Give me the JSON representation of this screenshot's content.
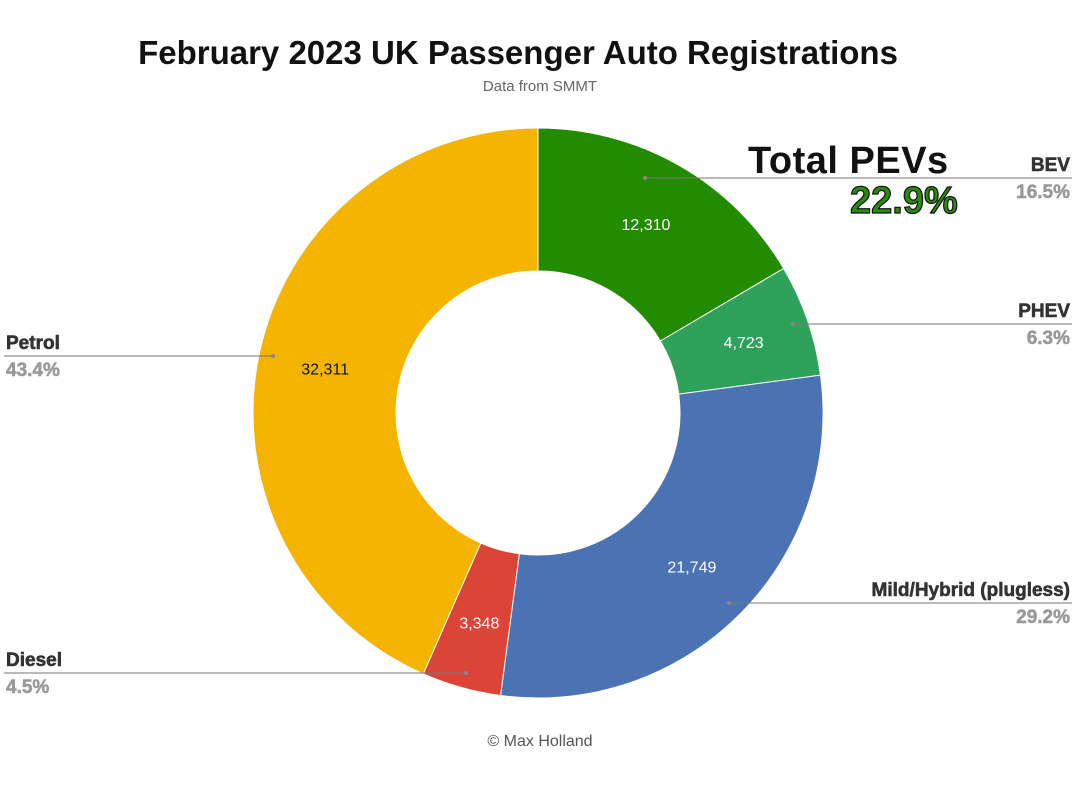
{
  "title": "February 2023 UK Passenger Auto Registrations",
  "subtitle": "Data from SMMT",
  "footer": "© Max Holland",
  "annotation": {
    "title": "Total PEVs",
    "value": "22.9%",
    "value_color": "#2a8a0a"
  },
  "chart_data": {
    "type": "pie",
    "variant": "donut",
    "title": "February 2023 UK Passenger Auto Registrations",
    "subtitle": "Data from SMMT",
    "slices": [
      {
        "name": "BEV",
        "value": 12310,
        "value_label": "12,310",
        "percent": "16.5%",
        "color": "#228b00",
        "value_text_color": "#ffffff"
      },
      {
        "name": "PHEV",
        "value": 4723,
        "value_label": "4,723",
        "percent": "6.3%",
        "color": "#2ea25a",
        "value_text_color": "#ffffff"
      },
      {
        "name": "Mild/Hybrid (plugless)",
        "value": 21749,
        "value_label": "21,749",
        "percent": "29.2%",
        "color": "#4b73b3",
        "value_text_color": "#ffffff"
      },
      {
        "name": "Diesel",
        "value": 3348,
        "value_label": "3,348",
        "percent": "4.5%",
        "color": "#dc4437",
        "value_text_color": "#ffffff"
      },
      {
        "name": "Petrol",
        "value": 32311,
        "value_label": "32,311",
        "percent": "43.4%",
        "color": "#f4b400",
        "value_text_color": "#111111"
      }
    ],
    "start_angle": "12 o'clock",
    "direction": "clockwise",
    "legend": "callout labels beside slices"
  }
}
